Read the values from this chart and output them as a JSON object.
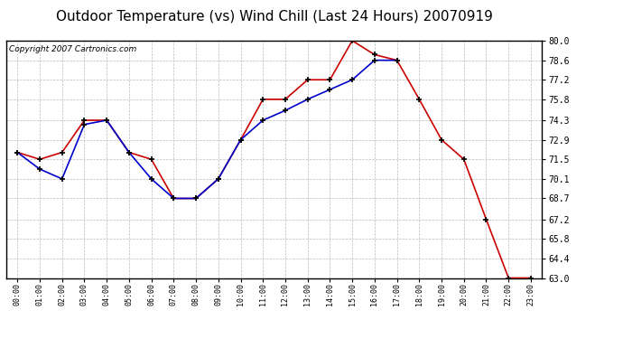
{
  "title": "Outdoor Temperature (vs) Wind Chill (Last 24 Hours) 20070919",
  "copyright": "Copyright 2007 Cartronics.com",
  "x_labels": [
    "00:00",
    "01:00",
    "02:00",
    "03:00",
    "04:00",
    "05:00",
    "06:00",
    "07:00",
    "08:00",
    "09:00",
    "10:00",
    "11:00",
    "12:00",
    "13:00",
    "14:00",
    "15:00",
    "16:00",
    "17:00",
    "18:00",
    "19:00",
    "20:00",
    "21:00",
    "22:00",
    "23:00"
  ],
  "temp_red": [
    72.0,
    71.5,
    72.0,
    74.3,
    74.3,
    72.0,
    71.5,
    68.7,
    68.7,
    70.1,
    72.9,
    75.8,
    75.8,
    77.2,
    77.2,
    80.0,
    79.0,
    78.6,
    75.8,
    72.9,
    71.5,
    67.2,
    63.0,
    63.0
  ],
  "temp_blue": [
    72.0,
    70.8,
    70.1,
    74.0,
    74.3,
    72.0,
    70.1,
    68.7,
    68.7,
    70.1,
    72.9,
    74.3,
    75.0,
    75.8,
    76.5,
    77.2,
    78.6,
    78.6,
    null,
    null,
    null,
    null,
    null,
    null
  ],
  "ylim_min": 63.0,
  "ylim_max": 80.0,
  "yticks": [
    63.0,
    64.4,
    65.8,
    67.2,
    68.7,
    70.1,
    71.5,
    72.9,
    74.3,
    75.8,
    77.2,
    78.6,
    80.0
  ],
  "bg_color": "#ffffff",
  "plot_bg_color": "#ffffff",
  "grid_color": "#bbbbbb",
  "line_color_red": "#cc0000",
  "line_color_blue": "#0000cc",
  "title_fontsize": 11,
  "copyright_fontsize": 6.5
}
